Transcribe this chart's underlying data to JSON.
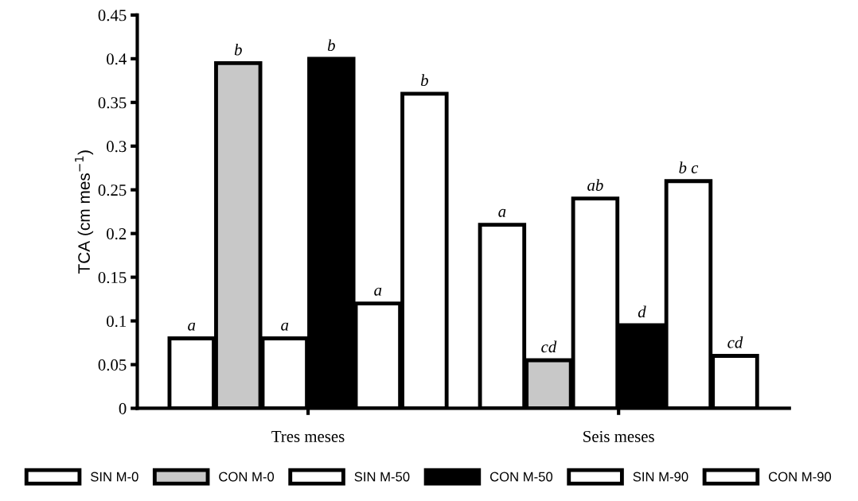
{
  "chart_data": {
    "type": "bar",
    "ylabel": "TCA (cm mes$^{−1}$)",
    "categories": [
      "Tres meses",
      "Seis meses"
    ],
    "ylim": [
      0,
      0.45
    ],
    "yticks": [
      0,
      0.05,
      0.1,
      0.15,
      0.2,
      0.25,
      0.3,
      0.35,
      0.4,
      0.45
    ],
    "grid": false,
    "legend": "bottom",
    "series": [
      {
        "name": "SIN M-0",
        "color": "#ffffff",
        "values": [
          0.08,
          0.21
        ],
        "value_labels": [
          "a",
          "a"
        ]
      },
      {
        "name": "CON M-0",
        "color": "#c8c8c8",
        "values": [
          0.395,
          0.055
        ],
        "value_labels": [
          "b",
          "cd"
        ]
      },
      {
        "name": "SIN M-50",
        "color": "#ffffff",
        "values": [
          0.08,
          0.24
        ],
        "value_labels": [
          "a",
          "ab"
        ]
      },
      {
        "name": "CON M-50",
        "color": "#000000",
        "values": [
          0.4,
          0.095
        ],
        "value_labels": [
          "b",
          "d"
        ]
      },
      {
        "name": "SIN M-90",
        "color": "#ffffff",
        "values": [
          0.12,
          0.26
        ],
        "value_labels": [
          "a",
          "b c"
        ]
      },
      {
        "name": "CON M-90",
        "color": "#ffffff",
        "values": [
          0.36,
          0.06
        ],
        "value_labels": [
          "b",
          "cd"
        ]
      }
    ]
  }
}
